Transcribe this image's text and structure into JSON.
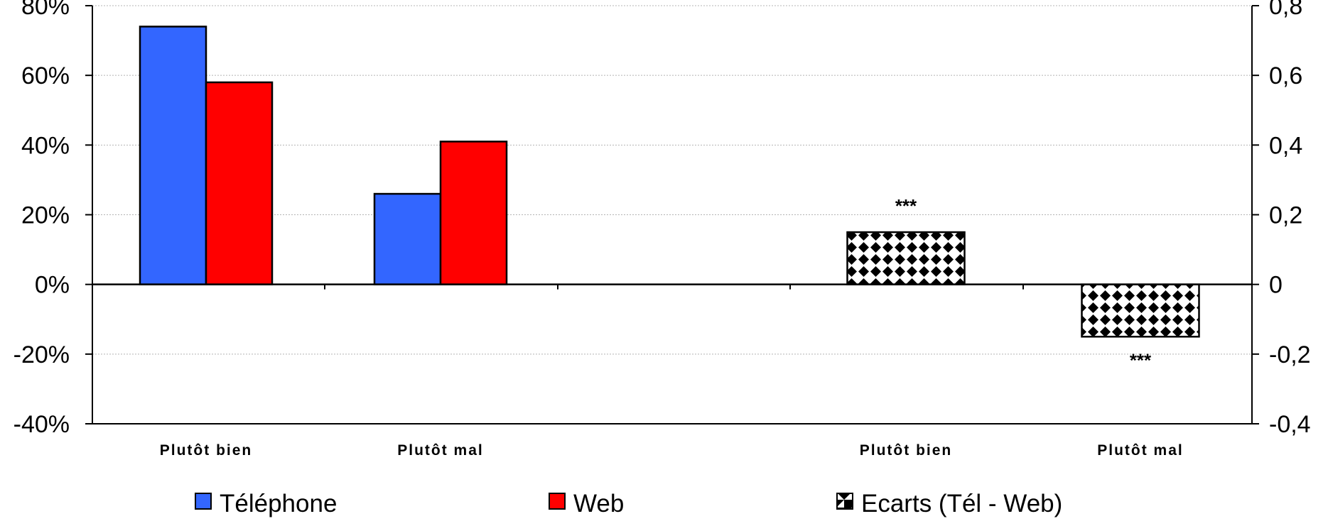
{
  "chart_data": {
    "type": "bar",
    "groups": [
      {
        "label": "Plutôt bien",
        "telephone": 0.74,
        "web": 0.58
      },
      {
        "label": "Plutôt mal",
        "telephone": 0.26,
        "web": 0.41
      }
    ],
    "ecarts": [
      {
        "label": "Plutôt bien",
        "value": 0.15,
        "annotation": "***"
      },
      {
        "label": "Plutôt mal",
        "value": -0.15,
        "annotation": "***"
      }
    ],
    "left_axis": {
      "ylim": [
        -0.4,
        0.8
      ],
      "ticks": [
        {
          "value": 0.8,
          "label": "80%"
        },
        {
          "value": 0.6,
          "label": "60%"
        },
        {
          "value": 0.4,
          "label": "40%"
        },
        {
          "value": 0.2,
          "label": "20%"
        },
        {
          "value": 0.0,
          "label": "0%"
        },
        {
          "value": -0.2,
          "label": "-20%"
        },
        {
          "value": -0.4,
          "label": "-40%"
        }
      ]
    },
    "right_axis": {
      "ylim": [
        -0.4,
        0.8
      ],
      "ticks": [
        {
          "value": 0.8,
          "label": "0,8"
        },
        {
          "value": 0.6,
          "label": "0,6"
        },
        {
          "value": 0.4,
          "label": "0,4"
        },
        {
          "value": 0.2,
          "label": "0,2"
        },
        {
          "value": 0.0,
          "label": "0"
        },
        {
          "value": -0.2,
          "label": "-0,2"
        },
        {
          "value": -0.4,
          "label": "-0,4"
        }
      ]
    },
    "grid": true,
    "legend_position": "bottom",
    "legend": [
      {
        "key": "telephone",
        "label": "Téléphone",
        "color": "#3366ff"
      },
      {
        "key": "web",
        "label": "Web",
        "color": "#ff0000"
      },
      {
        "key": "ecarts",
        "label": "Ecarts (Tél - Web)",
        "pattern": "diamond-checker"
      }
    ]
  }
}
